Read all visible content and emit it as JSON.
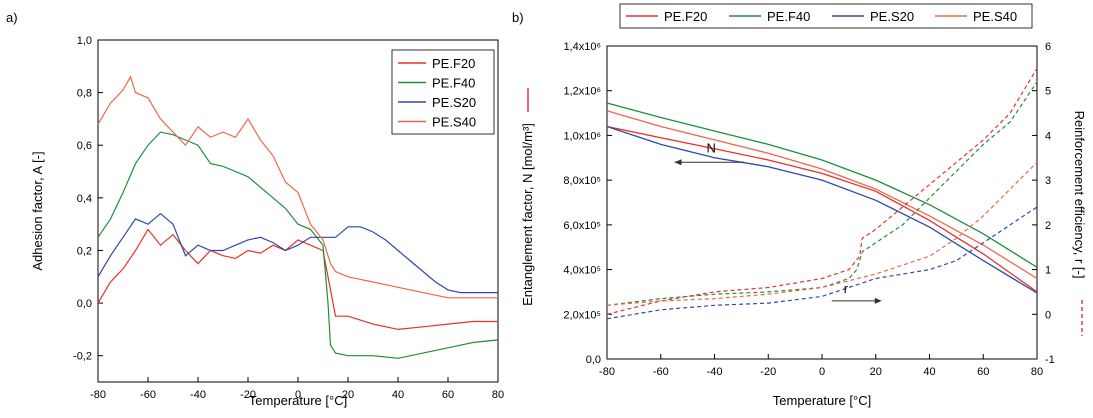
{
  "colors": {
    "red": "#e8312a",
    "green": "#1f8f3a",
    "blue": "#2e4aa8",
    "orange": "#f0664a",
    "axis": "#000000"
  },
  "chart_data": [
    {
      "panel_label": "a)",
      "type": "line",
      "xlabel": "Temperature [°C]",
      "ylabel": "Adhesion factor, A  [-]",
      "xlim": [
        -80,
        80
      ],
      "ylim": [
        -0.3,
        1.0
      ],
      "xticks": [
        -80,
        -60,
        -40,
        -20,
        0,
        20,
        40,
        60,
        80
      ],
      "yticks": [
        "-0,2",
        "0,0",
        "0,2",
        "0,4",
        "0,6",
        "0,8",
        "1,0"
      ],
      "ytick_values": [
        -0.2,
        0.0,
        0.2,
        0.4,
        0.6,
        0.8,
        1.0
      ],
      "legend_position": "top-right",
      "series": [
        {
          "name": "PE.F20",
          "color": "red",
          "x": [
            -80,
            -75,
            -70,
            -65,
            -60,
            -55,
            -50,
            -45,
            -40,
            -35,
            -30,
            -25,
            -20,
            -15,
            -10,
            -5,
            0,
            5,
            10,
            13,
            15,
            20,
            30,
            40,
            50,
            60,
            70,
            80
          ],
          "y": [
            0.0,
            0.08,
            0.13,
            0.2,
            0.28,
            0.22,
            0.26,
            0.2,
            0.15,
            0.2,
            0.18,
            0.17,
            0.2,
            0.19,
            0.22,
            0.2,
            0.24,
            0.22,
            0.2,
            0.05,
            -0.05,
            -0.05,
            -0.08,
            -0.1,
            -0.09,
            -0.08,
            -0.07,
            -0.07
          ]
        },
        {
          "name": "PE.F40",
          "color": "green",
          "x": [
            -80,
            -75,
            -70,
            -65,
            -60,
            -55,
            -50,
            -45,
            -40,
            -35,
            -30,
            -25,
            -20,
            -15,
            -10,
            -5,
            0,
            5,
            10,
            12,
            13,
            15,
            20,
            30,
            40,
            50,
            60,
            70,
            80
          ],
          "y": [
            0.25,
            0.32,
            0.42,
            0.53,
            0.6,
            0.65,
            0.64,
            0.62,
            0.6,
            0.53,
            0.52,
            0.5,
            0.48,
            0.44,
            0.4,
            0.36,
            0.3,
            0.28,
            0.22,
            0.0,
            -0.16,
            -0.19,
            -0.2,
            -0.2,
            -0.21,
            -0.19,
            -0.17,
            -0.15,
            -0.14
          ]
        },
        {
          "name": "PE.S20",
          "color": "blue",
          "x": [
            -80,
            -75,
            -70,
            -65,
            -60,
            -55,
            -50,
            -45,
            -40,
            -35,
            -30,
            -25,
            -20,
            -15,
            -10,
            -5,
            0,
            5,
            10,
            15,
            20,
            25,
            30,
            35,
            40,
            45,
            50,
            55,
            60,
            65,
            70,
            75,
            80
          ],
          "y": [
            0.1,
            0.18,
            0.25,
            0.32,
            0.3,
            0.34,
            0.3,
            0.18,
            0.22,
            0.2,
            0.2,
            0.22,
            0.24,
            0.25,
            0.23,
            0.2,
            0.22,
            0.25,
            0.25,
            0.25,
            0.29,
            0.29,
            0.27,
            0.24,
            0.2,
            0.16,
            0.12,
            0.08,
            0.05,
            0.04,
            0.04,
            0.04,
            0.04
          ]
        },
        {
          "name": "PE.S40",
          "color": "orange",
          "x": [
            -80,
            -75,
            -70,
            -67,
            -65,
            -60,
            -55,
            -50,
            -45,
            -40,
            -35,
            -30,
            -25,
            -20,
            -15,
            -10,
            -5,
            0,
            5,
            10,
            13,
            15,
            20,
            25,
            30,
            40,
            50,
            60,
            70,
            80
          ],
          "y": [
            0.68,
            0.76,
            0.81,
            0.86,
            0.8,
            0.78,
            0.7,
            0.65,
            0.6,
            0.67,
            0.63,
            0.65,
            0.63,
            0.7,
            0.62,
            0.56,
            0.46,
            0.42,
            0.3,
            0.24,
            0.15,
            0.12,
            0.1,
            0.09,
            0.08,
            0.06,
            0.04,
            0.02,
            0.02,
            0.02
          ]
        }
      ]
    },
    {
      "panel_label": "b)",
      "type": "line",
      "xlabel": "Temperature [°C]",
      "ylabel": "Entanglement factor, N  [mol/m³]",
      "y2label": "Reinforcement efficiency, r  [-]",
      "xlim": [
        -80,
        80
      ],
      "ylim": [
        0,
        1400000
      ],
      "y2lim": [
        -1,
        6
      ],
      "xticks": [
        -80,
        -60,
        -40,
        -20,
        0,
        20,
        40,
        60,
        80
      ],
      "yticks": [
        "0,0",
        "2,0x10⁵",
        "4,0x10⁵",
        "6,0x10⁵",
        "8,0x10⁵",
        "1,0x10⁶",
        "1,2x10⁶",
        "1,4x10⁶"
      ],
      "ytick_values": [
        0,
        200000,
        400000,
        600000,
        800000,
        1000000,
        1200000,
        1400000
      ],
      "y2ticks": [
        -1,
        0,
        1,
        2,
        3,
        4,
        5,
        6
      ],
      "legend_position": "top",
      "legend": [
        "PE.F20",
        "PE.F40",
        "PE.S20",
        "PE.S40"
      ],
      "annotations": [
        {
          "text": "N",
          "at": [
            -40,
            880000
          ],
          "arrow": "left"
        },
        {
          "text": "r",
          "at": [
            20,
            0.3
          ],
          "arrow": "right"
        }
      ],
      "series_N": [
        {
          "name": "PE.F20",
          "color": "red",
          "x": [
            -80,
            -60,
            -40,
            -20,
            0,
            20,
            40,
            60,
            80
          ],
          "y": [
            1040000,
            990000,
            940000,
            890000,
            830000,
            750000,
            620000,
            470000,
            300000
          ]
        },
        {
          "name": "PE.F40",
          "color": "green",
          "x": [
            -80,
            -60,
            -40,
            -20,
            0,
            20,
            40,
            60,
            80
          ],
          "y": [
            1145000,
            1080000,
            1020000,
            960000,
            890000,
            800000,
            690000,
            560000,
            410000
          ]
        },
        {
          "name": "PE.S20",
          "color": "blue",
          "x": [
            -80,
            -60,
            -40,
            -20,
            0,
            20,
            40,
            60,
            80
          ],
          "y": [
            1040000,
            960000,
            900000,
            860000,
            800000,
            710000,
            590000,
            440000,
            295000
          ]
        },
        {
          "name": "PE.S40",
          "color": "orange",
          "x": [
            -80,
            -60,
            -40,
            -20,
            0,
            20,
            40,
            60,
            80
          ],
          "y": [
            1110000,
            1040000,
            980000,
            920000,
            850000,
            760000,
            640000,
            510000,
            360000
          ]
        }
      ],
      "series_r": [
        {
          "name": "PE.F20",
          "color": "red",
          "x": [
            -80,
            -60,
            -40,
            -20,
            0,
            10,
            14,
            15,
            20,
            30,
            40,
            50,
            60,
            70,
            80
          ],
          "y": [
            0.0,
            0.3,
            0.5,
            0.6,
            0.8,
            1.0,
            1.3,
            1.7,
            1.9,
            2.4,
            2.9,
            3.4,
            3.9,
            4.5,
            5.5
          ]
        },
        {
          "name": "PE.F40",
          "color": "green",
          "x": [
            -80,
            -60,
            -40,
            -20,
            0,
            10,
            13,
            15,
            20,
            30,
            40,
            50,
            60,
            70,
            80
          ],
          "y": [
            0.2,
            0.35,
            0.45,
            0.5,
            0.6,
            0.8,
            1.0,
            1.4,
            1.6,
            2.0,
            2.6,
            3.2,
            3.8,
            4.3,
            5.2
          ]
        },
        {
          "name": "PE.S20",
          "color": "blue",
          "x": [
            -80,
            -60,
            -40,
            -20,
            0,
            20,
            40,
            50,
            60,
            70,
            80
          ],
          "y": [
            -0.1,
            0.1,
            0.2,
            0.25,
            0.4,
            0.8,
            1.0,
            1.2,
            1.6,
            2.0,
            2.4
          ]
        },
        {
          "name": "PE.S40",
          "color": "orange",
          "x": [
            -80,
            -60,
            -40,
            -20,
            0,
            20,
            40,
            50,
            60,
            70,
            80
          ],
          "y": [
            0.2,
            0.3,
            0.35,
            0.45,
            0.6,
            0.9,
            1.3,
            1.7,
            2.2,
            2.8,
            3.4
          ]
        }
      ]
    }
  ]
}
